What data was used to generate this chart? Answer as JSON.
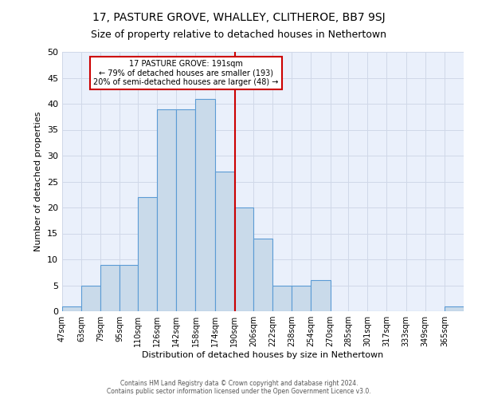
{
  "title": "17, PASTURE GROVE, WHALLEY, CLITHEROE, BB7 9SJ",
  "subtitle": "Size of property relative to detached houses in Nethertown",
  "xlabel": "Distribution of detached houses by size in Nethertown",
  "ylabel": "Number of detached properties",
  "bin_labels": [
    "47sqm",
    "63sqm",
    "79sqm",
    "95sqm",
    "110sqm",
    "126sqm",
    "142sqm",
    "158sqm",
    "174sqm",
    "190sqm",
    "206sqm",
    "222sqm",
    "238sqm",
    "254sqm",
    "270sqm",
    "285sqm",
    "301sqm",
    "317sqm",
    "333sqm",
    "349sqm",
    "365sqm"
  ],
  "bar_heights": [
    1,
    5,
    9,
    9,
    22,
    39,
    39,
    41,
    27,
    20,
    14,
    5,
    5,
    6,
    0,
    0,
    0,
    0,
    0,
    0,
    1
  ],
  "bar_color": "#c9daea",
  "bar_edge_color": "#5b9bd5",
  "property_line_x": 191,
  "bin_edges": [
    47,
    63,
    79,
    95,
    110,
    126,
    142,
    158,
    174,
    190,
    206,
    222,
    238,
    254,
    270,
    285,
    301,
    317,
    333,
    349,
    365,
    381
  ],
  "annotation_text": "17 PASTURE GROVE: 191sqm\n← 79% of detached houses are smaller (193)\n20% of semi-detached houses are larger (48) →",
  "annotation_box_color": "#ffffff",
  "annotation_box_edge_color": "#cc0000",
  "vline_color": "#cc0000",
  "ylim": [
    0,
    50
  ],
  "yticks": [
    0,
    5,
    10,
    15,
    20,
    25,
    30,
    35,
    40,
    45,
    50
  ],
  "grid_color": "#d0d8e8",
  "background_color": "#eaf0fb",
  "footer_text": "Contains HM Land Registry data © Crown copyright and database right 2024.\nContains public sector information licensed under the Open Government Licence v3.0.",
  "title_fontsize": 10,
  "subtitle_fontsize": 9,
  "label_fontsize": 8,
  "tick_fontsize": 7,
  "annot_fontsize": 7
}
